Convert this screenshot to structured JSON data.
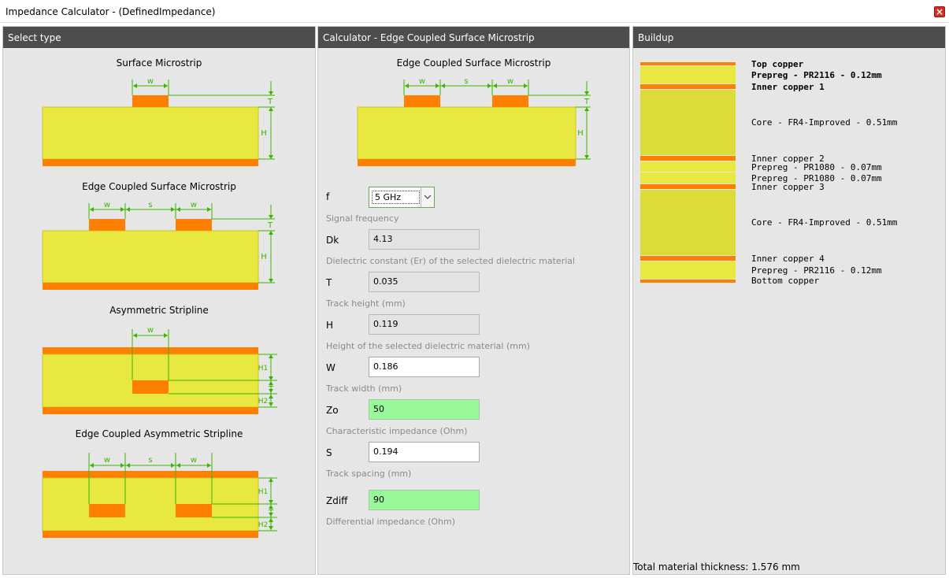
{
  "window": {
    "title": "Impedance Calculator - (DefinedImpedance)"
  },
  "select_panel": {
    "header": "Select type",
    "types": [
      {
        "label": "Surface Microstrip",
        "dims": {
          "w": "w",
          "t": "T",
          "h": "H"
        }
      },
      {
        "label": "Edge Coupled Surface Microstrip",
        "dims": {
          "w": "w",
          "s": "s",
          "t": "T",
          "h": "H"
        }
      },
      {
        "label": "Asymmetric Stripline",
        "dims": {
          "w": "w",
          "h1": "H1",
          "t": "T",
          "h2": "H2"
        }
      },
      {
        "label": "Edge Coupled Asymmetric Stripline",
        "dims": {
          "w": "w",
          "s": "s",
          "h1": "H1",
          "t": "T",
          "h2": "H2"
        }
      }
    ]
  },
  "calc_panel": {
    "header": "Calculator - Edge Coupled Surface Microstrip",
    "diagram_title": "Edge Coupled Surface Microstrip",
    "dims": {
      "w": "w",
      "s": "s",
      "t": "T",
      "h": "H"
    },
    "frequency": {
      "label": "f",
      "value": "5 GHz",
      "help": "Signal frequency"
    },
    "fields": [
      {
        "label": "Dk",
        "value": "4.13",
        "help": "Dielectric constant (Er) of the selected dielectric material",
        "kind": "readonly"
      },
      {
        "label": "T",
        "value": "0.035",
        "help": "Track height (mm)",
        "kind": "readonly"
      },
      {
        "label": "H",
        "value": "0.119",
        "help": "Height of the selected dielectric material (mm)",
        "kind": "readonly"
      },
      {
        "label": "W",
        "value": "0.186",
        "help": "Track width (mm)",
        "kind": "editable"
      },
      {
        "label": "Zo",
        "value": "50",
        "help": "Characteristic impedance (Ohm)",
        "kind": "result"
      },
      {
        "label": "S",
        "value": "0.194",
        "help": "Track spacing (mm)",
        "kind": "editable"
      },
      {
        "label": "Zdiff",
        "value": "90",
        "help": "Differential impedance (Ohm)",
        "kind": "result"
      }
    ]
  },
  "buildup_panel": {
    "header": "Buildup",
    "layers": [
      {
        "label": "Top copper",
        "bold": true
      },
      {
        "label": "Prepreg - PR2116 - 0.12mm",
        "bold": true
      },
      {
        "label": "Inner copper 1",
        "bold": true
      },
      {
        "label": "Core - FR4-Improved - 0.51mm",
        "bold": false
      },
      {
        "label": "Inner copper 2",
        "bold": false
      },
      {
        "label": "Prepreg - PR1080 - 0.07mm",
        "bold": false
      },
      {
        "label": "Prepreg - PR1080 - 0.07mm",
        "bold": false
      },
      {
        "label": "Inner copper 3",
        "bold": false
      },
      {
        "label": "Core - FR4-Improved - 0.51mm",
        "bold": false
      },
      {
        "label": "Inner copper 4",
        "bold": false
      },
      {
        "label": "Prepreg - PR2116 - 0.12mm",
        "bold": false
      },
      {
        "label": "Bottom copper",
        "bold": false
      }
    ],
    "total": "Total material thickness: 1.576 mm"
  },
  "colors": {
    "copper": "#ff8000",
    "dielectric": "#e8e840",
    "selected_dielectric": "#dcdc38",
    "dimension": "#3cb400",
    "header_bg": "#4d4d4d",
    "result_bg": "#99f899"
  }
}
